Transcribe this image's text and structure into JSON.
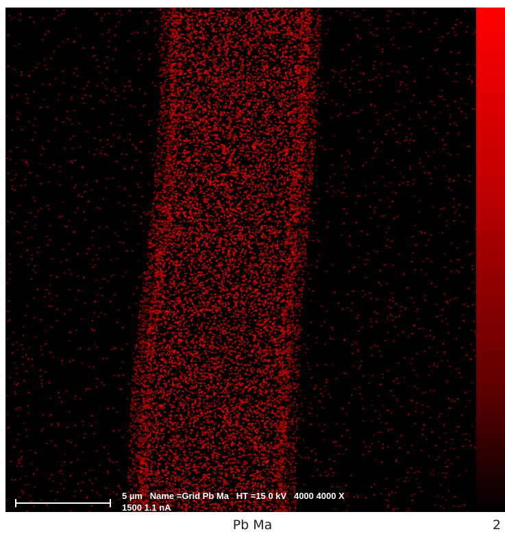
{
  "map": {
    "element_line": "Pb Ma",
    "index": "2",
    "scale_bar_label": "5 µm",
    "info_line_1": "5 µm   Name =Grid Pb Ma   HT =15 0 kV   4000 4000 X",
    "info_line_2": "1500 1.1 nA"
  },
  "colors": {
    "background": "#000000",
    "dot": "#ff1a1a",
    "scale_top": "#ff0000",
    "scale_bottom": "#000000"
  }
}
